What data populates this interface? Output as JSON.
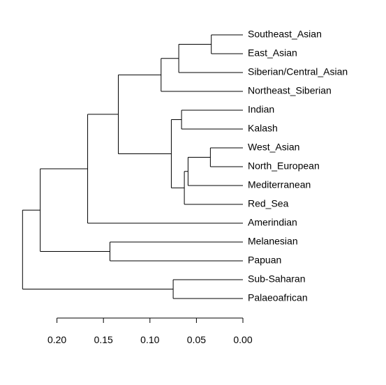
{
  "chart_data": {
    "type": "dendrogram",
    "orientation": "horizontal",
    "title": "",
    "xlabel": "",
    "xlim": [
      0.2,
      0.0
    ],
    "axis_ticks": [
      {
        "value": 0.2,
        "label": "0.20"
      },
      {
        "value": 0.15,
        "label": "0.15"
      },
      {
        "value": 0.1,
        "label": "0.10"
      },
      {
        "value": 0.05,
        "label": "0.05"
      },
      {
        "value": 0.0,
        "label": "0.00"
      }
    ],
    "leaves": [
      "Southeast_Asian",
      "East_Asian",
      "Siberian/Central_Asian",
      "Northeast_Siberian",
      "Indian",
      "Kalash",
      "West_Asian",
      "North_European",
      "Mediterranean",
      "Red_Sea",
      "Amerindian",
      "Melanesian",
      "Papuan",
      "Sub-Saharan",
      "Palaeoafrican"
    ],
    "merges": [
      {
        "id": "c1",
        "height": 0.034,
        "children": [
          "Southeast_Asian",
          "East_Asian"
        ]
      },
      {
        "id": "c2",
        "height": 0.069,
        "children": [
          "c1",
          "Siberian/Central_Asian"
        ]
      },
      {
        "id": "c3",
        "height": 0.088,
        "children": [
          "c2",
          "Northeast_Siberian"
        ]
      },
      {
        "id": "c4",
        "height": 0.066,
        "children": [
          "Indian",
          "Kalash"
        ]
      },
      {
        "id": "c5",
        "height": 0.035,
        "children": [
          "West_Asian",
          "North_European"
        ]
      },
      {
        "id": "c6",
        "height": 0.059,
        "children": [
          "c5",
          "Mediterranean"
        ]
      },
      {
        "id": "c7",
        "height": 0.063,
        "children": [
          "c6",
          "Red_Sea"
        ]
      },
      {
        "id": "c8",
        "height": 0.077,
        "children": [
          "c4",
          "c7"
        ]
      },
      {
        "id": "c9",
        "height": 0.134,
        "children": [
          "c3",
          "c8"
        ]
      },
      {
        "id": "c10",
        "height": 0.167,
        "children": [
          "c9",
          "Amerindian"
        ]
      },
      {
        "id": "c11",
        "height": 0.143,
        "children": [
          "Melanesian",
          "Papuan"
        ]
      },
      {
        "id": "c12",
        "height": 0.218,
        "children": [
          "c10",
          "c11"
        ]
      },
      {
        "id": "c13",
        "height": 0.075,
        "children": [
          "Sub-Saharan",
          "Palaeoafrican"
        ]
      },
      {
        "id": "c14",
        "height": 0.237,
        "children": [
          "c12",
          "c13"
        ]
      }
    ]
  }
}
